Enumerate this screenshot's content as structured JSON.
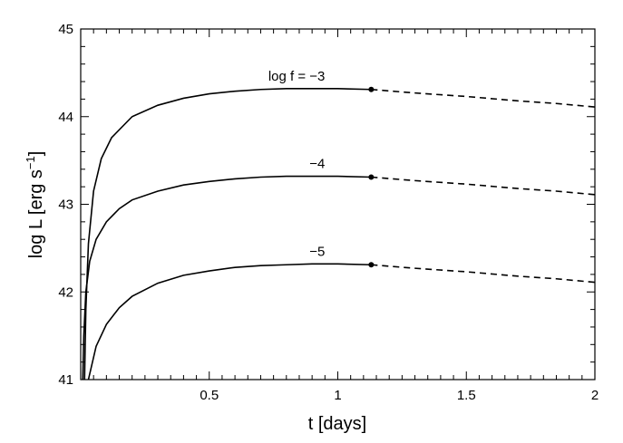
{
  "chart_data": {
    "type": "line",
    "xlabel": "t [days]",
    "ylabel_main": "log L [erg s",
    "ylabel_sup": "−1",
    "ylabel_close": "]",
    "xlim": [
      0,
      2
    ],
    "ylim": [
      41,
      45
    ],
    "x_ticks": [
      {
        "value": 0.5,
        "label": "0.5"
      },
      {
        "value": 1.0,
        "label": "1"
      },
      {
        "value": 1.5,
        "label": "1.5"
      },
      {
        "value": 2.0,
        "label": "2"
      }
    ],
    "y_ticks": [
      {
        "value": 41,
        "label": "41"
      },
      {
        "value": 42,
        "label": "42"
      },
      {
        "value": 43,
        "label": "43"
      },
      {
        "value": 44,
        "label": "44"
      },
      {
        "value": 45,
        "label": "45"
      }
    ],
    "grid": false,
    "series": [
      {
        "annotation": "log f = −3",
        "solid": {
          "x": [
            0.015,
            0.02,
            0.03,
            0.05,
            0.08,
            0.12,
            0.2,
            0.3,
            0.4,
            0.5,
            0.6,
            0.7,
            0.8,
            0.9,
            1.0,
            1.13
          ],
          "y": [
            41.0,
            41.8,
            42.55,
            43.15,
            43.52,
            43.76,
            44.0,
            44.13,
            44.21,
            44.26,
            44.29,
            44.31,
            44.32,
            44.32,
            44.32,
            44.31
          ]
        },
        "dashed": {
          "x": [
            1.13,
            1.3,
            1.5,
            1.7,
            1.85,
            2.0
          ],
          "y": [
            44.31,
            44.27,
            44.23,
            44.18,
            44.15,
            44.11
          ]
        },
        "end_point": {
          "x": 1.13,
          "y": 44.31
        }
      },
      {
        "annotation": "−4",
        "solid": {
          "x": [
            0.008,
            0.012,
            0.02,
            0.035,
            0.06,
            0.1,
            0.15,
            0.2,
            0.3,
            0.4,
            0.5,
            0.6,
            0.7,
            0.8,
            0.9,
            1.0,
            1.13
          ],
          "y": [
            41.0,
            41.5,
            42.0,
            42.35,
            42.6,
            42.8,
            42.95,
            43.05,
            43.15,
            43.22,
            43.26,
            43.29,
            43.31,
            43.32,
            43.32,
            43.32,
            43.31
          ]
        },
        "dashed": {
          "x": [
            1.13,
            1.3,
            1.5,
            1.7,
            1.85,
            2.0
          ],
          "y": [
            43.31,
            43.27,
            43.23,
            43.18,
            43.15,
            43.11
          ]
        },
        "end_point": {
          "x": 1.13,
          "y": 43.31
        }
      },
      {
        "annotation": "−5",
        "solid": {
          "x": [
            0.03,
            0.06,
            0.1,
            0.15,
            0.2,
            0.3,
            0.4,
            0.5,
            0.6,
            0.7,
            0.8,
            0.9,
            1.0,
            1.13
          ],
          "y": [
            41.0,
            41.38,
            41.63,
            41.82,
            41.95,
            42.1,
            42.19,
            42.24,
            42.28,
            42.3,
            42.31,
            42.32,
            42.32,
            42.31
          ]
        },
        "dashed": {
          "x": [
            1.13,
            1.3,
            1.5,
            1.7,
            1.85,
            2.0
          ],
          "y": [
            42.31,
            42.27,
            42.23,
            42.18,
            42.15,
            42.11
          ]
        },
        "end_point": {
          "x": 1.13,
          "y": 42.31
        }
      }
    ]
  }
}
